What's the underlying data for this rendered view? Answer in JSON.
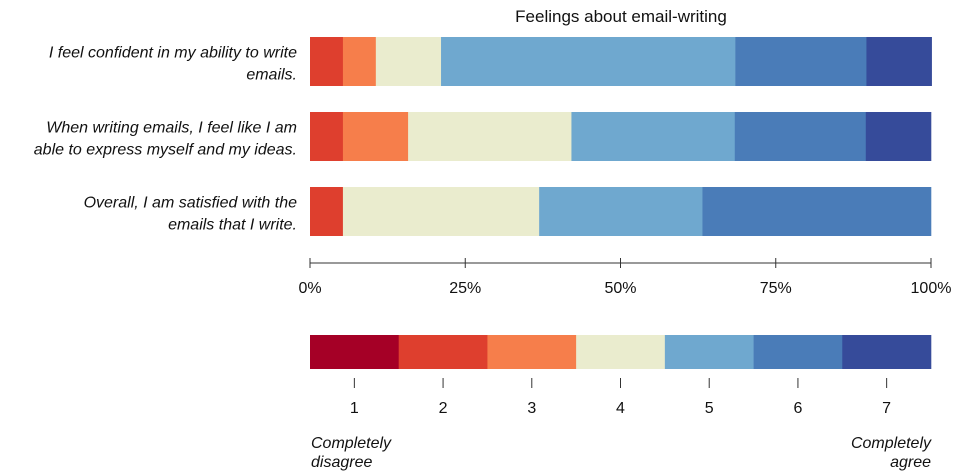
{
  "chart_data": {
    "type": "bar",
    "orientation": "horizontal-stacked",
    "title": "Feelings about email-writing",
    "categories": [
      "I feel confident in my ability to write emails.",
      "When writing emails, I feel like I am able to express myself and my ideas.",
      "Overall, I am satisfied with the emails that I write."
    ],
    "category_lines": [
      [
        "I feel confident in my ability to write",
        "emails."
      ],
      [
        "When writing emails, I feel like I am",
        "able to express myself and my ideas."
      ],
      [
        "Overall, I am satisfied with the",
        "emails that I write."
      ]
    ],
    "series": [
      {
        "name": "1",
        "color": "#a50026",
        "values": [
          0,
          0,
          0
        ]
      },
      {
        "name": "2",
        "color": "#de3f2e",
        "values": [
          5.3,
          5.3,
          5.3
        ]
      },
      {
        "name": "3",
        "color": "#f67e4b",
        "values": [
          5.3,
          10.5,
          0
        ]
      },
      {
        "name": "4",
        "color": "#eaecce",
        "values": [
          10.5,
          26.3,
          31.6
        ]
      },
      {
        "name": "5",
        "color": "#6fa8cf",
        "values": [
          47.4,
          26.3,
          26.3
        ]
      },
      {
        "name": "6",
        "color": "#4a7cb8",
        "values": [
          21.1,
          21.1,
          36.8
        ]
      },
      {
        "name": "7",
        "color": "#364b9a",
        "values": [
          10.5,
          10.5,
          0
        ]
      }
    ],
    "x_ticks": [
      "0%",
      "25%",
      "50%",
      "75%",
      "100%"
    ],
    "xlim": [
      0,
      100
    ],
    "grid": false,
    "legend": {
      "placement": "bottom",
      "labels": [
        "1",
        "2",
        "3",
        "4",
        "5",
        "6",
        "7"
      ],
      "left_end_label": [
        "Completely",
        "disagree"
      ],
      "right_end_label": [
        "Completely",
        "agree"
      ]
    }
  }
}
